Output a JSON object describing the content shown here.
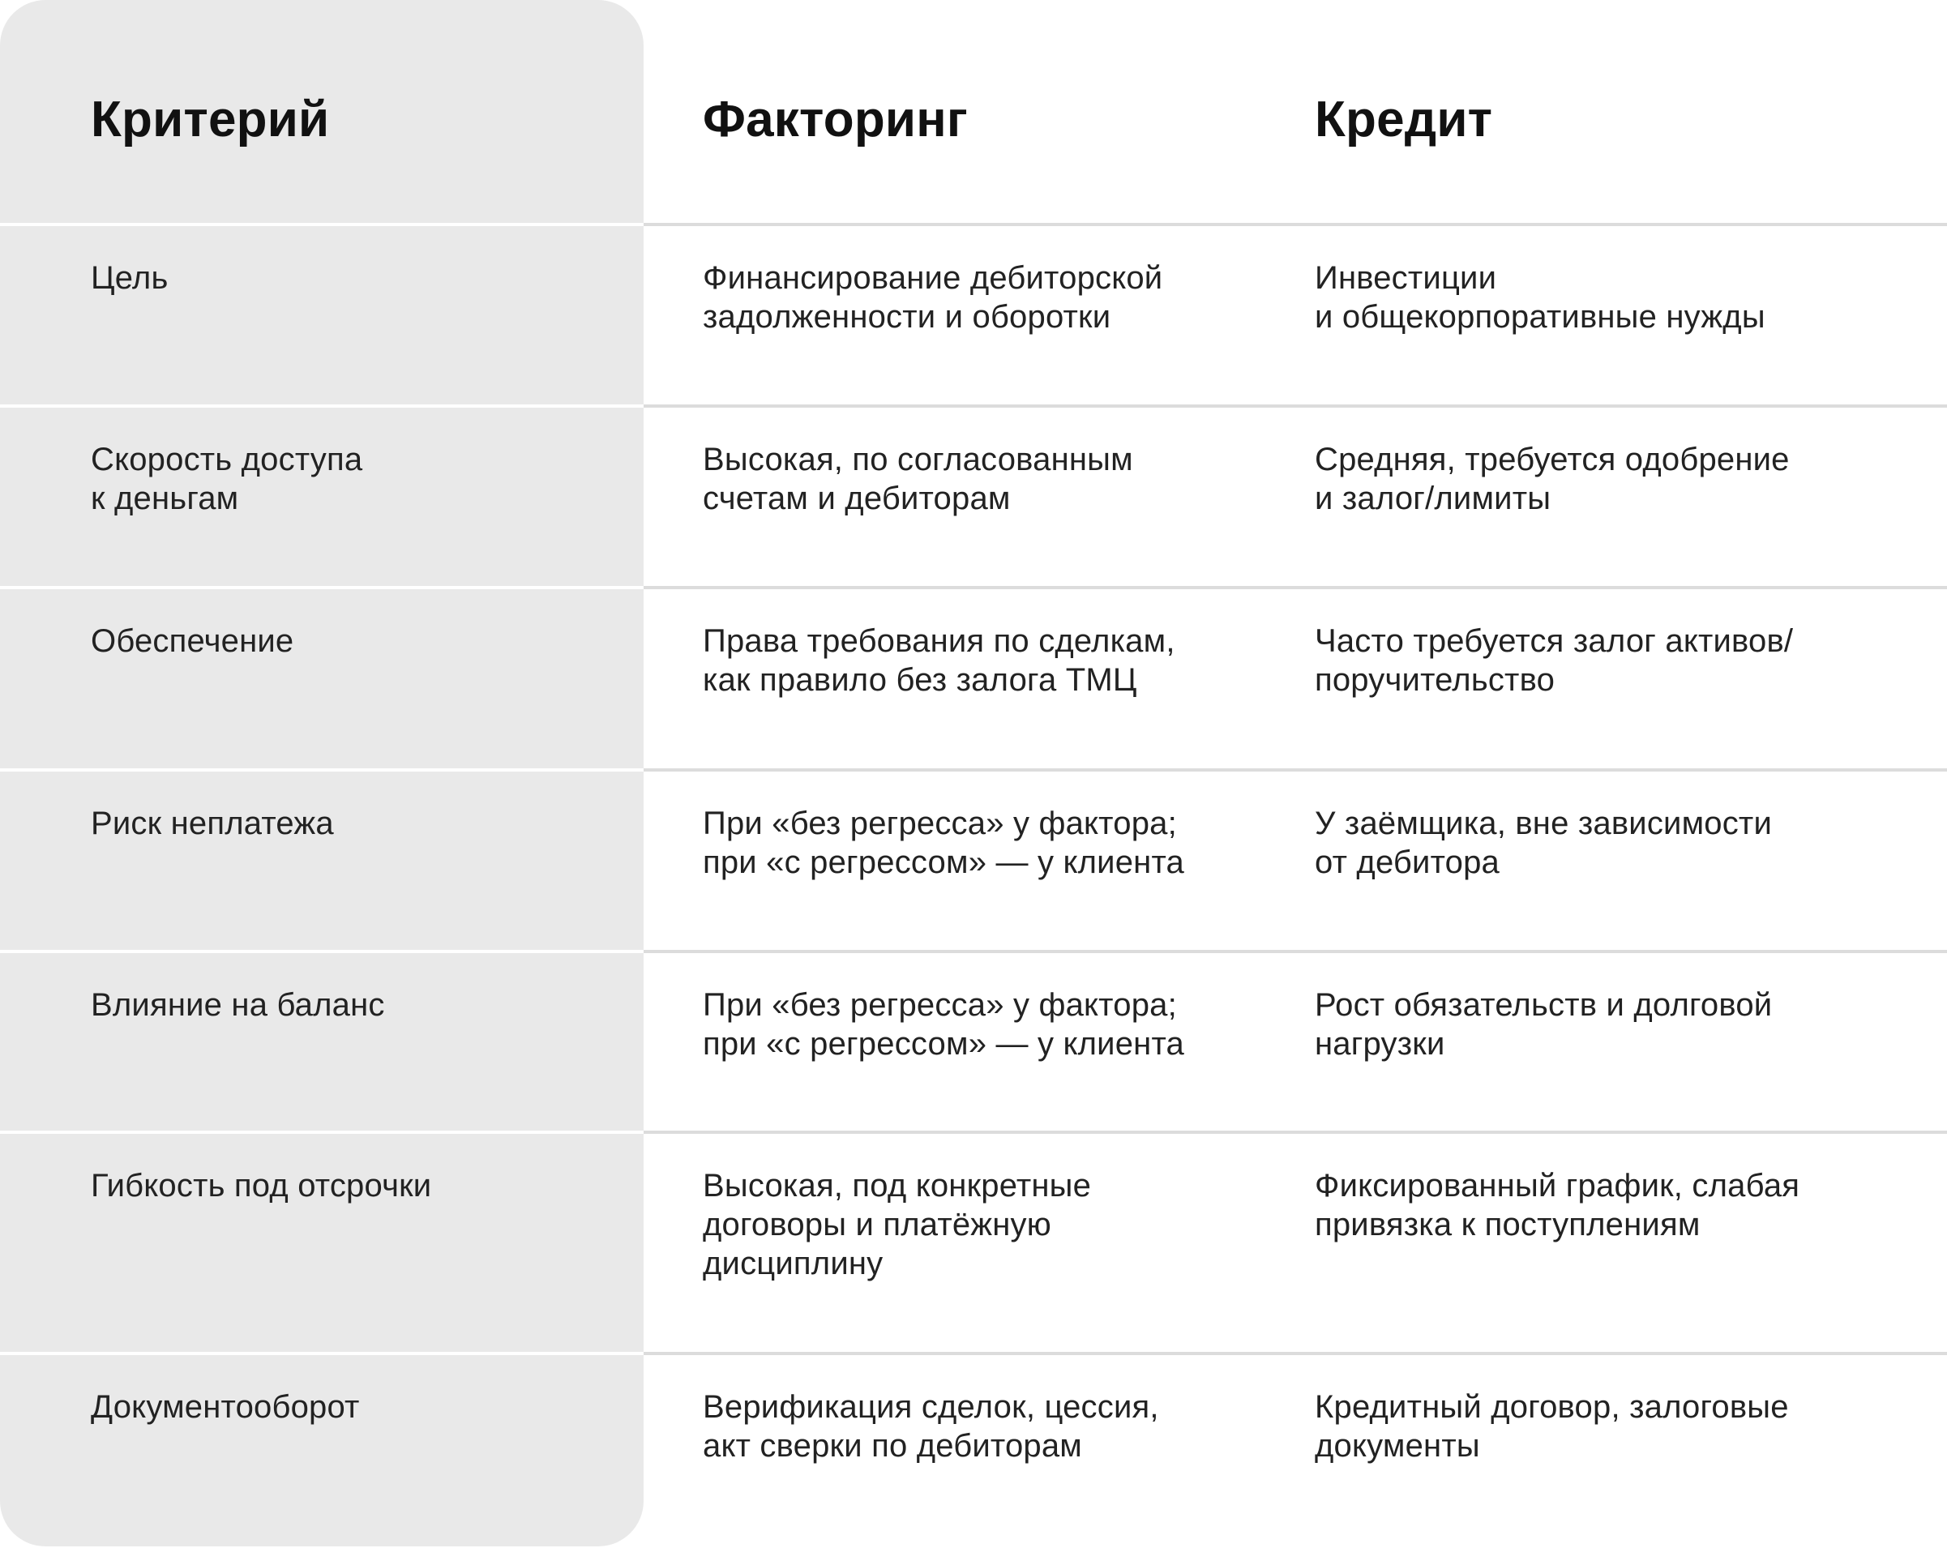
{
  "table": {
    "headers": [
      "Критерий",
      "Факторинг",
      "Кредит"
    ],
    "rows": [
      {
        "criterion": "Цель",
        "factoring": "Финансирование дебиторской\nзадолженности и оборотки",
        "credit": "Инвестиции\nи общекорпоративные нужды"
      },
      {
        "criterion": "Скорость доступа\nк деньгам",
        "factoring": "Высокая, по согласованным\nсчетам и дебиторам",
        "credit": "Средняя, требуется одобрение\nи залог/лимиты"
      },
      {
        "criterion": "Обеспечение",
        "factoring": "Права требования по сделкам,\nкак правило без залога ТМЦ",
        "credit": "Часто требуется залог активов/\nпоручительство"
      },
      {
        "criterion": "Риск неплатежа",
        "factoring": "При «без регресса» у фактора;\nпри «с регрессом» — у клиента",
        "credit": "У заёмщика, вне зависимости\nот дебитора"
      },
      {
        "criterion": "Влияние на баланс",
        "factoring": "При «без регресса» у фактора;\nпри «с регрессом» — у клиента",
        "credit": "Рост обязательств и долговой\nнагрузки"
      },
      {
        "criterion": "Гибкость под отсрочки",
        "factoring": "Высокая, под конкретные\nдоговоры и платёжную\nдисциплину",
        "credit": "Фиксированный график, слабая\nпривязка к поступлениям"
      },
      {
        "criterion": "Документооборот",
        "factoring": "Верификация сделок, цессия,\nакт сверки по дебиторам",
        "credit": "Кредитный договор, залоговые\nдокументы"
      }
    ]
  },
  "colors": {
    "criterion_column_bg": "#e9e9e9",
    "divider": "#dcdcdc",
    "text": "#222222"
  }
}
